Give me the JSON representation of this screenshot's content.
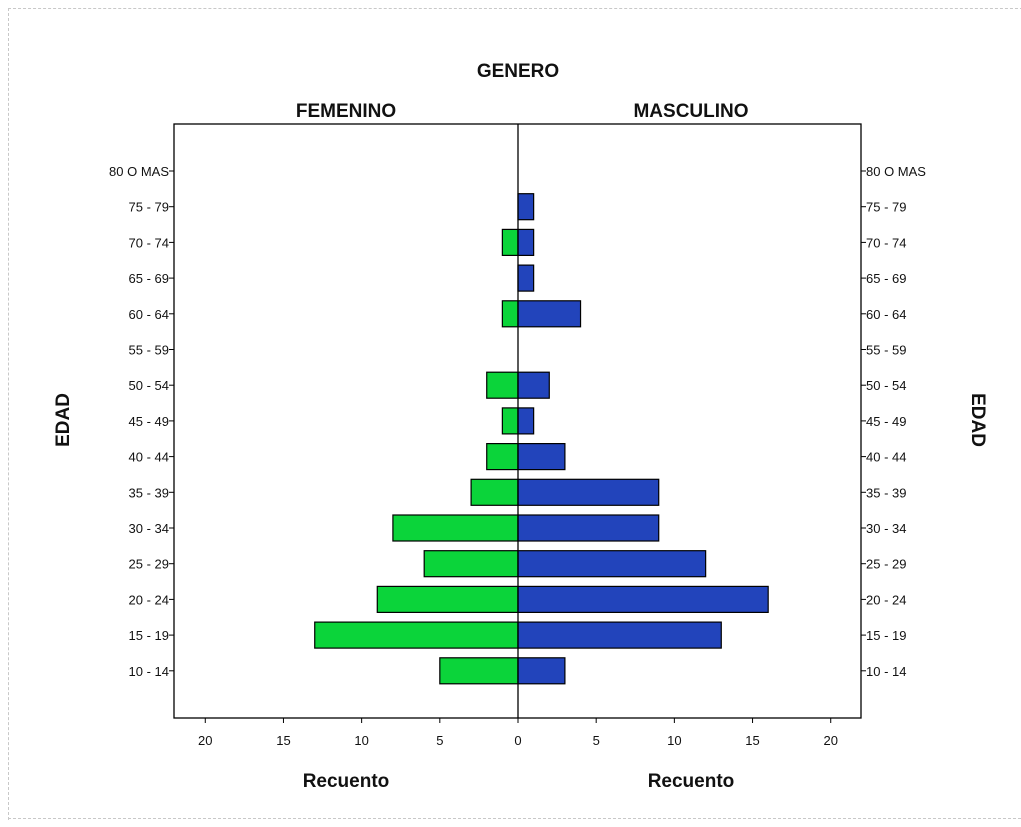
{
  "chart_data": {
    "type": "bar",
    "orientation": "horizontal",
    "layout": "population-pyramid",
    "title": "GENERO",
    "panels": [
      "FEMENINO",
      "MASCULINO"
    ],
    "ylabel": "EDAD",
    "xlabel": "Recuento",
    "categories": [
      "80 O MAS",
      "75 - 79",
      "70 - 74",
      "65 - 69",
      "60 - 64",
      "55 - 59",
      "50 - 54",
      "45 - 49",
      "40 - 44",
      "35 - 39",
      "30 - 34",
      "25 - 29",
      "20 - 24",
      "15 - 19",
      "10 - 14"
    ],
    "series": [
      {
        "name": "FEMENINO",
        "color": "#0bd43a",
        "values": [
          0,
          0,
          1,
          0,
          1,
          0,
          2,
          1,
          2,
          3,
          8,
          6,
          9,
          13,
          5
        ]
      },
      {
        "name": "MASCULINO",
        "color": "#2244bb",
        "values": [
          0,
          1,
          1,
          1,
          4,
          0,
          2,
          1,
          3,
          9,
          9,
          12,
          16,
          13,
          3
        ]
      }
    ],
    "xlim": [
      -22,
      20.5
    ],
    "x_ticks": [
      20,
      15,
      10,
      5,
      0,
      5,
      10,
      15,
      20
    ],
    "x_tick_values": [
      -20,
      -15,
      -10,
      -5,
      0,
      5,
      10,
      15,
      20
    ],
    "grid": false,
    "legend": "none"
  }
}
